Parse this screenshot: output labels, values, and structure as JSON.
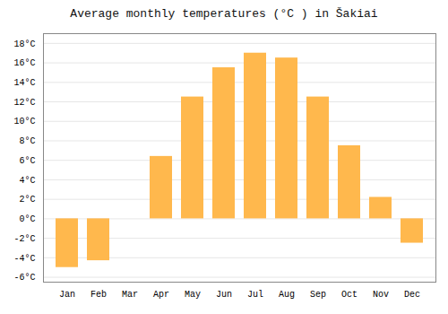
{
  "chart_data": {
    "type": "bar",
    "title": "Average monthly temperatures (°C ) in Šakiai",
    "categories": [
      "Jan",
      "Feb",
      "Mar",
      "Apr",
      "May",
      "Jun",
      "Jul",
      "Aug",
      "Sep",
      "Oct",
      "Nov",
      "Dec"
    ],
    "values": [
      -5.0,
      -4.3,
      0.0,
      6.4,
      12.5,
      15.5,
      17.0,
      16.5,
      12.5,
      7.5,
      2.2,
      -2.5
    ],
    "color": "#FFB84D",
    "ylim": [
      -6.5,
      19
    ],
    "yticks": [
      {
        "value": -6,
        "label": "-6°C"
      },
      {
        "value": -4,
        "label": "-4°C"
      },
      {
        "value": -2,
        "label": "-2°C"
      },
      {
        "value": 0,
        "label": "0°C"
      },
      {
        "value": 2,
        "label": "2°C"
      },
      {
        "value": 4,
        "label": "4°C"
      },
      {
        "value": 6,
        "label": "6°C"
      },
      {
        "value": 8,
        "label": "8°C"
      },
      {
        "value": 10,
        "label": "10°C"
      },
      {
        "value": 12,
        "label": "12°C"
      },
      {
        "value": 14,
        "label": "14°C"
      },
      {
        "value": 16,
        "label": "16°C"
      },
      {
        "value": 18,
        "label": "18°C"
      }
    ],
    "grid": true
  }
}
